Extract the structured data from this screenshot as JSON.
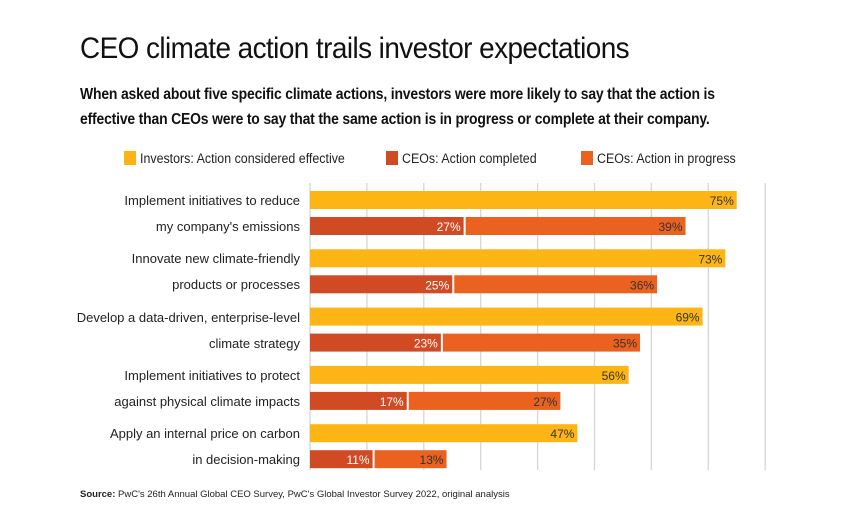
{
  "title": "CEO climate action trails investor expectations",
  "subtitle_lines": [
    "When asked about five specific climate actions, investors were more likely to say that the action is",
    "effective than CEOs were to say that the same action is in progress or complete at their company."
  ],
  "source": {
    "label": "Source:",
    "text": "PwC's 26th Annual Global CEO Survey, PwC's Global Investor Survey 2022, original analysis"
  },
  "colors": {
    "investors": "#FDB515",
    "ceo_completed": "#D04A23",
    "ceo_in_progress": "#EB6120",
    "grid": "#d6d6d6"
  },
  "chart_data": {
    "type": "bar",
    "orientation": "horizontal",
    "title": "CEO climate action trails investor expectations",
    "xlabel": "",
    "ylabel": "",
    "xlim": [
      0,
      80
    ],
    "grid": true,
    "grid_step": 10,
    "legend_position": "top",
    "legend": [
      "Investors: Action considered effective",
      "CEOs: Action completed",
      "CEOs: Action in progress"
    ],
    "categories": [
      [
        "Implement initiatives to reduce",
        "my company's emissions"
      ],
      [
        "Innovate new climate-friendly",
        "products or processes"
      ],
      [
        "Develop a data-driven, enterprise-level",
        "climate strategy"
      ],
      [
        "Implement initiatives to protect",
        "against physical climate impacts"
      ],
      [
        "Apply an internal price on carbon",
        "in decision-making"
      ]
    ],
    "series": [
      {
        "name": "Investors: Action considered effective",
        "values": [
          75,
          73,
          69,
          56,
          47
        ],
        "unit": "%"
      },
      {
        "name": "CEOs: Action completed",
        "values": [
          27,
          25,
          23,
          17,
          11
        ],
        "unit": "%",
        "stack": "ceo"
      },
      {
        "name": "CEOs: Action in progress",
        "values": [
          39,
          36,
          35,
          27,
          13
        ],
        "unit": "%",
        "stack": "ceo"
      }
    ]
  }
}
